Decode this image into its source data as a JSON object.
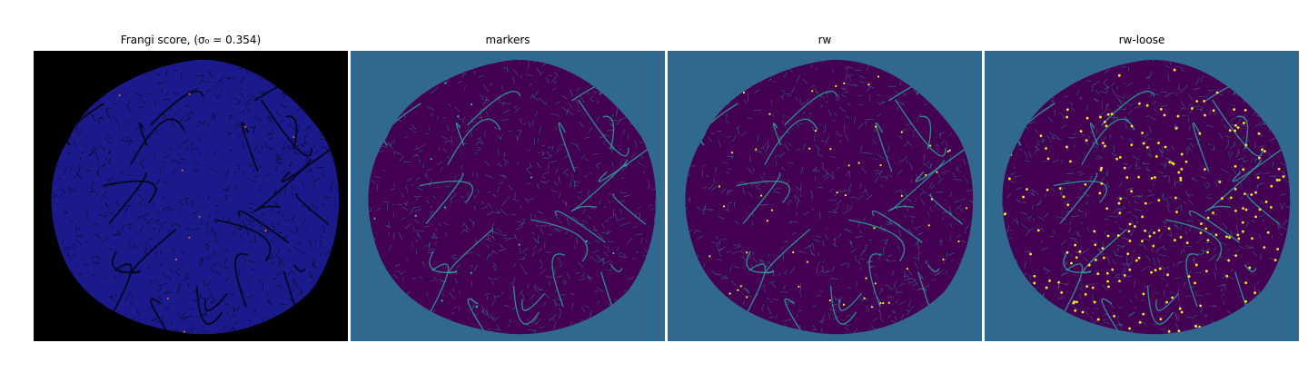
{
  "figure": {
    "panels": [
      {
        "id": "frangi",
        "title": "Frangi score, (σ₀ = 0.354)",
        "background": "#000000",
        "blob_color": "#1a1a8c",
        "vessel_color": "#0a0a30",
        "highlight_color": "#e05a3a"
      },
      {
        "id": "markers",
        "title": "markers",
        "background": "#31688e",
        "blob_color": "#440154",
        "vessel_color": "#2ab0a0",
        "highlight_color": "#3bb8a2"
      },
      {
        "id": "rw",
        "title": "rw",
        "background": "#31688e",
        "blob_color": "#440154",
        "vessel_color": "#2ab0a0",
        "highlight_color": "#fde725"
      },
      {
        "id": "rw-loose",
        "title": "rw-loose",
        "background": "#31688e",
        "blob_color": "#440154",
        "vessel_color": "#2ab0a0",
        "highlight_color": "#fde725"
      }
    ]
  }
}
